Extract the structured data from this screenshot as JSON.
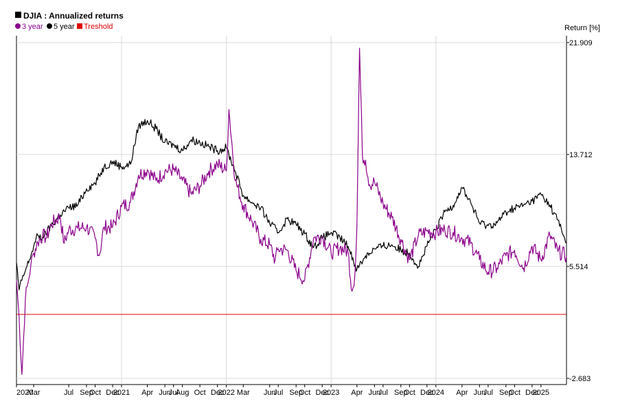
{
  "colors": {
    "three_year": "#8b008b",
    "five_year": "#000000",
    "threshold": "#e00000",
    "grid": "#d9d9d9"
  },
  "chart_data": {
    "type": "line",
    "title": "DJIA : Annualized returns",
    "ylabel": "Return [%]",
    "y_ticks": [
      "21.909",
      "13.712",
      "5.514",
      "-2.683"
    ],
    "ylim": [
      -2.683,
      21.909
    ],
    "xlim": [
      "2020-01-01",
      "2025-03-31"
    ],
    "x_ticks": [
      {
        "label": "2020",
        "date": "2020-01-01"
      },
      {
        "label": "Mar",
        "date": "2020-03-01"
      },
      {
        "label": "Jul",
        "date": "2020-07-01"
      },
      {
        "label": "Sep",
        "date": "2020-09-01"
      },
      {
        "label": "Oct",
        "date": "2020-10-01"
      },
      {
        "label": "Dec",
        "date": "2020-12-01"
      },
      {
        "label": "2021",
        "date": "2021-01-01"
      },
      {
        "label": "Apr",
        "date": "2021-04-01"
      },
      {
        "label": "Jun",
        "date": "2021-06-01"
      },
      {
        "label": "Jul",
        "date": "2021-07-01"
      },
      {
        "label": "Aug",
        "date": "2021-08-01"
      },
      {
        "label": "Oct",
        "date": "2021-10-01"
      },
      {
        "label": "Dec",
        "date": "2021-12-01"
      },
      {
        "label": "2022",
        "date": "2022-01-01"
      },
      {
        "label": "Mar",
        "date": "2022-03-01"
      },
      {
        "label": "Jun",
        "date": "2022-06-01"
      },
      {
        "label": "Jul",
        "date": "2022-07-01"
      },
      {
        "label": "Sep",
        "date": "2022-09-01"
      },
      {
        "label": "Oct",
        "date": "2022-10-01"
      },
      {
        "label": "Dec",
        "date": "2022-12-01"
      },
      {
        "label": "2023",
        "date": "2023-01-01"
      },
      {
        "label": "Apr",
        "date": "2023-04-01"
      },
      {
        "label": "Jun",
        "date": "2023-06-01"
      },
      {
        "label": "Jul",
        "date": "2023-07-01"
      },
      {
        "label": "Sep",
        "date": "2023-09-01"
      },
      {
        "label": "Oct",
        "date": "2023-10-01"
      },
      {
        "label": "Dec",
        "date": "2023-12-01"
      },
      {
        "label": "2024",
        "date": "2024-01-01"
      },
      {
        "label": "Apr",
        "date": "2024-04-01"
      },
      {
        "label": "Jun",
        "date": "2024-06-01"
      },
      {
        "label": "Jul",
        "date": "2024-07-01"
      },
      {
        "label": "Sep",
        "date": "2024-09-01"
      },
      {
        "label": "Oct",
        "date": "2024-10-01"
      },
      {
        "label": "Dec",
        "date": "2024-12-01"
      },
      {
        "label": "2025",
        "date": "2025-01-01"
      }
    ],
    "grid_years": [
      "2021-01-01",
      "2022-01-01",
      "2023-01-01",
      "2024-01-01"
    ],
    "threshold": 2.0,
    "legend": {
      "placement": "top-left",
      "items": [
        {
          "label": "3 year",
          "marker": "circle",
          "color_key": "three_year"
        },
        {
          "label": "5 year",
          "marker": "circle",
          "color_key": "five_year"
        },
        {
          "label": "Treshold",
          "marker": "square",
          "color_key": "threshold"
        }
      ]
    },
    "series": [
      {
        "name": "3 year",
        "x": [
          "2020-01-01",
          "2020-01-10",
          "2020-01-20",
          "2020-02-01",
          "2020-02-10",
          "2020-02-20",
          "2020-03-01",
          "2020-03-15",
          "2020-04-01",
          "2020-04-15",
          "2020-05-01",
          "2020-06-01",
          "2020-06-15",
          "2020-07-01",
          "2020-08-01",
          "2020-09-01",
          "2020-10-01",
          "2020-10-15",
          "2020-11-01",
          "2020-12-01",
          "2021-01-01",
          "2021-02-01",
          "2021-03-01",
          "2021-04-01",
          "2021-05-01",
          "2021-06-01",
          "2021-07-01",
          "2021-08-01",
          "2021-09-01",
          "2021-10-01",
          "2021-11-01",
          "2021-12-01",
          "2022-01-01",
          "2022-01-10",
          "2022-02-01",
          "2022-03-01",
          "2022-04-01",
          "2022-05-01",
          "2022-06-01",
          "2022-06-20",
          "2022-07-01",
          "2022-08-01",
          "2022-09-01",
          "2022-10-01",
          "2022-11-01",
          "2022-12-01",
          "2023-01-01",
          "2023-02-01",
          "2023-03-01",
          "2023-03-15",
          "2023-03-25",
          "2023-04-01",
          "2023-04-10",
          "2023-04-20",
          "2023-05-01",
          "2023-05-15",
          "2023-06-01",
          "2023-07-01",
          "2023-08-01",
          "2023-09-01",
          "2023-10-01",
          "2023-11-01",
          "2023-12-01",
          "2024-01-01",
          "2024-02-01",
          "2024-03-01",
          "2024-04-01",
          "2024-05-01",
          "2024-06-01",
          "2024-07-01",
          "2024-08-01",
          "2024-09-01",
          "2024-10-01",
          "2024-11-01",
          "2024-12-01",
          "2025-01-01",
          "2025-02-01",
          "2025-03-01",
          "2025-03-31"
        ],
        "y": [
          4.5,
          1.8,
          -2.4,
          3.2,
          4.3,
          5.6,
          6.5,
          7.3,
          7.8,
          7.6,
          8.6,
          9.2,
          7.2,
          8.2,
          8.3,
          8.4,
          7.6,
          6.3,
          8.4,
          8.4,
          9.9,
          10.2,
          12.2,
          12.6,
          11.8,
          12.5,
          12.6,
          11.8,
          10.8,
          11.4,
          12.5,
          13.0,
          12.5,
          17.0,
          11.8,
          10.0,
          8.8,
          7.5,
          7.1,
          6.0,
          6.8,
          6.7,
          5.2,
          4.5,
          7.6,
          7.7,
          6.5,
          6.9,
          6.6,
          3.7,
          5.0,
          8.5,
          21.5,
          13.6,
          13.3,
          11.5,
          11.7,
          10.1,
          9.1,
          7.5,
          6.0,
          7.8,
          8.1,
          8.0,
          8.2,
          8.0,
          7.6,
          7.2,
          6.0,
          5.1,
          5.4,
          6.3,
          6.7,
          5.4,
          7.0,
          6.0,
          7.8,
          6.6,
          6.3
        ]
      },
      {
        "name": "5 year",
        "x": [
          "2020-01-01",
          "2020-01-10",
          "2020-01-20",
          "2020-02-01",
          "2020-02-15",
          "2020-03-01",
          "2020-03-15",
          "2020-04-01",
          "2020-05-01",
          "2020-06-01",
          "2020-07-01",
          "2020-08-01",
          "2020-09-01",
          "2020-10-01",
          "2020-11-01",
          "2020-12-01",
          "2021-01-01",
          "2021-02-01",
          "2021-03-01",
          "2021-04-01",
          "2021-05-01",
          "2021-06-01",
          "2021-07-01",
          "2021-08-01",
          "2021-09-01",
          "2021-10-01",
          "2021-11-01",
          "2021-12-01",
          "2022-01-01",
          "2022-02-01",
          "2022-03-01",
          "2022-04-01",
          "2022-05-01",
          "2022-06-01",
          "2022-07-01",
          "2022-08-01",
          "2022-09-01",
          "2022-10-01",
          "2022-11-01",
          "2022-12-01",
          "2023-01-01",
          "2023-02-01",
          "2023-03-01",
          "2023-04-01",
          "2023-05-01",
          "2023-06-01",
          "2023-07-01",
          "2023-08-01",
          "2023-09-01",
          "2023-10-01",
          "2023-11-01",
          "2023-12-01",
          "2024-01-01",
          "2024-02-01",
          "2024-03-01",
          "2024-04-01",
          "2024-05-01",
          "2024-06-01",
          "2024-07-01",
          "2024-08-01",
          "2024-09-01",
          "2024-10-01",
          "2024-11-01",
          "2024-12-01",
          "2025-01-01",
          "2025-02-01",
          "2025-03-01",
          "2025-03-31"
        ],
        "y": [
          5.8,
          3.8,
          4.5,
          5.2,
          6.0,
          7.0,
          7.8,
          7.6,
          8.5,
          9.3,
          9.8,
          10.0,
          11.2,
          11.6,
          12.8,
          13.2,
          12.8,
          13.0,
          15.8,
          16.2,
          15.6,
          14.6,
          14.4,
          14.0,
          14.8,
          14.6,
          14.3,
          14.0,
          14.2,
          12.5,
          10.7,
          10.2,
          9.8,
          8.7,
          8.0,
          9.0,
          8.6,
          7.9,
          6.9,
          7.6,
          8.0,
          7.6,
          7.0,
          5.3,
          6.3,
          6.8,
          7.0,
          7.1,
          6.7,
          6.5,
          5.5,
          7.0,
          8.2,
          9.5,
          10.0,
          11.3,
          10.2,
          8.7,
          8.5,
          8.7,
          9.5,
          9.8,
          10.0,
          10.3,
          10.8,
          10.0,
          8.9,
          7.2
        ]
      }
    ]
  }
}
